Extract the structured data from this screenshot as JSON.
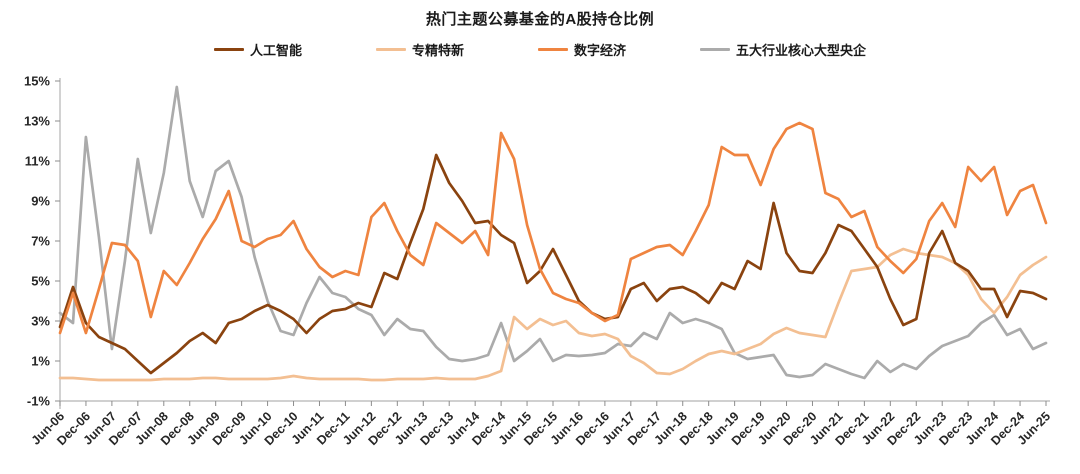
{
  "title": "热门主题公募基金的A股持仓比例",
  "colors": {
    "background": "#ffffff",
    "axis_line": "#b3b3b3",
    "tick_mark": "#8c8c8c",
    "tick_label": "#262626",
    "title_text": "#1a1a1a",
    "series_ai": "#8a430f",
    "series_zjtx": "#f3bf92",
    "series_szjj": "#ef8440",
    "series_yangqi": "#ababab"
  },
  "chart_data": {
    "type": "line",
    "title": "热门主题公募基金的A股持仓比例",
    "xlabel": "",
    "ylabel": "",
    "ylim": [
      -1,
      15
    ],
    "y_ticks": [
      -1,
      1,
      3,
      5,
      7,
      9,
      11,
      13,
      15
    ],
    "y_tick_suffix": "%",
    "grid": false,
    "legend_position": "top",
    "x_label_every_nth": 2,
    "x": [
      "Jun-06",
      "Sep-06",
      "Dec-06",
      "Mar-07",
      "Jun-07",
      "Sep-07",
      "Dec-07",
      "Mar-08",
      "Jun-08",
      "Sep-08",
      "Dec-08",
      "Mar-09",
      "Jun-09",
      "Sep-09",
      "Dec-09",
      "Mar-10",
      "Jun-10",
      "Sep-10",
      "Dec-10",
      "Mar-11",
      "Jun-11",
      "Sep-11",
      "Dec-11",
      "Mar-12",
      "Jun-12",
      "Sep-12",
      "Dec-12",
      "Mar-13",
      "Jun-13",
      "Sep-13",
      "Dec-13",
      "Mar-14",
      "Jun-14",
      "Sep-14",
      "Dec-14",
      "Mar-15",
      "Jun-15",
      "Sep-15",
      "Dec-15",
      "Mar-16",
      "Jun-16",
      "Sep-16",
      "Dec-16",
      "Mar-17",
      "Jun-17",
      "Sep-17",
      "Dec-17",
      "Mar-18",
      "Jun-18",
      "Sep-18",
      "Dec-18",
      "Mar-19",
      "Jun-19",
      "Sep-19",
      "Dec-19",
      "Mar-20",
      "Jun-20",
      "Sep-20",
      "Dec-20",
      "Mar-21",
      "Jun-21",
      "Sep-21",
      "Dec-21",
      "Mar-22",
      "Jun-22",
      "Sep-22",
      "Dec-22",
      "Mar-23",
      "Jun-23",
      "Sep-23",
      "Dec-23",
      "Mar-24",
      "Jun-24",
      "Sep-24",
      "Dec-24",
      "Mar-25",
      "Jun-25"
    ],
    "series": [
      {
        "name": "人工智能",
        "color": "#8a430f",
        "values": [
          2.7,
          4.7,
          2.9,
          2.2,
          1.9,
          1.6,
          1.0,
          0.4,
          0.9,
          1.4,
          2.0,
          2.4,
          1.9,
          2.9,
          3.1,
          3.5,
          3.8,
          3.5,
          3.1,
          2.4,
          3.1,
          3.5,
          3.6,
          3.9,
          3.7,
          5.4,
          5.1,
          6.9,
          8.6,
          11.3,
          9.9,
          9.0,
          7.9,
          8.0,
          7.3,
          6.9,
          4.9,
          5.5,
          6.6,
          5.3,
          4.0,
          3.4,
          3.1,
          3.2,
          4.6,
          4.9,
          4.0,
          4.6,
          4.7,
          4.4,
          3.9,
          4.9,
          4.6,
          6.0,
          5.6,
          8.9,
          6.4,
          5.5,
          5.4,
          6.4,
          7.8,
          7.5,
          6.6,
          5.7,
          4.1,
          2.8,
          3.1,
          6.4,
          7.5,
          5.9,
          5.5,
          4.6,
          4.6,
          3.2,
          4.5,
          4.4,
          4.1
        ]
      },
      {
        "name": "专精特新",
        "color": "#f3bf92",
        "values": [
          0.15,
          0.15,
          0.1,
          0.05,
          0.05,
          0.05,
          0.05,
          0.05,
          0.1,
          0.1,
          0.1,
          0.15,
          0.15,
          0.1,
          0.1,
          0.1,
          0.1,
          0.15,
          0.25,
          0.15,
          0.1,
          0.1,
          0.1,
          0.1,
          0.05,
          0.05,
          0.1,
          0.1,
          0.1,
          0.15,
          0.1,
          0.1,
          0.1,
          0.25,
          0.5,
          3.2,
          2.6,
          3.1,
          2.8,
          3.0,
          2.4,
          2.25,
          2.35,
          2.1,
          1.25,
          0.9,
          0.4,
          0.35,
          0.6,
          1.0,
          1.35,
          1.5,
          1.35,
          1.6,
          1.85,
          2.35,
          2.65,
          2.4,
          2.3,
          2.2,
          3.9,
          5.5,
          5.6,
          5.7,
          6.3,
          6.6,
          6.4,
          6.3,
          6.2,
          5.9,
          5.3,
          4.1,
          3.4,
          4.2,
          5.3,
          5.8,
          6.2
        ]
      },
      {
        "name": "数字经济",
        "color": "#ef8440",
        "values": [
          2.4,
          4.4,
          2.4,
          4.6,
          6.9,
          6.8,
          6.0,
          3.2,
          5.5,
          4.8,
          5.9,
          7.1,
          8.1,
          9.5,
          7.0,
          6.7,
          7.1,
          7.3,
          8.0,
          6.6,
          5.7,
          5.2,
          5.5,
          5.3,
          8.2,
          8.9,
          7.5,
          6.3,
          5.8,
          7.9,
          7.4,
          6.9,
          7.5,
          6.3,
          12.4,
          11.1,
          7.8,
          5.6,
          4.4,
          4.1,
          3.9,
          3.4,
          3.0,
          3.3,
          6.1,
          6.4,
          6.7,
          6.8,
          6.3,
          7.5,
          8.8,
          11.7,
          11.3,
          11.3,
          9.8,
          11.6,
          12.6,
          12.9,
          12.6,
          9.4,
          9.1,
          8.2,
          8.5,
          6.7,
          6.0,
          5.4,
          6.1,
          8.0,
          8.9,
          7.7,
          10.7,
          10.0,
          10.7,
          8.3,
          9.5,
          9.8,
          7.9
        ]
      },
      {
        "name": "五大行业核心大型央企",
        "color": "#ababab",
        "values": [
          3.4,
          2.9,
          12.2,
          7.2,
          1.6,
          6.0,
          11.1,
          7.4,
          10.4,
          14.7,
          10.0,
          8.2,
          10.5,
          11.0,
          9.2,
          6.2,
          4.0,
          2.5,
          2.3,
          3.9,
          5.2,
          4.4,
          4.2,
          3.6,
          3.3,
          2.3,
          3.1,
          2.6,
          2.5,
          1.7,
          1.1,
          1.0,
          1.1,
          1.3,
          2.9,
          1.0,
          1.5,
          2.1,
          1.0,
          1.3,
          1.25,
          1.3,
          1.4,
          1.85,
          1.75,
          2.4,
          2.1,
          3.4,
          2.9,
          3.1,
          2.9,
          2.6,
          1.4,
          1.1,
          1.2,
          1.3,
          0.3,
          0.2,
          0.3,
          0.85,
          0.6,
          0.35,
          0.15,
          1.0,
          0.45,
          0.85,
          0.6,
          1.25,
          1.75,
          2.0,
          2.25,
          2.9,
          3.3,
          2.3,
          2.6,
          1.6,
          1.9
        ]
      }
    ]
  }
}
